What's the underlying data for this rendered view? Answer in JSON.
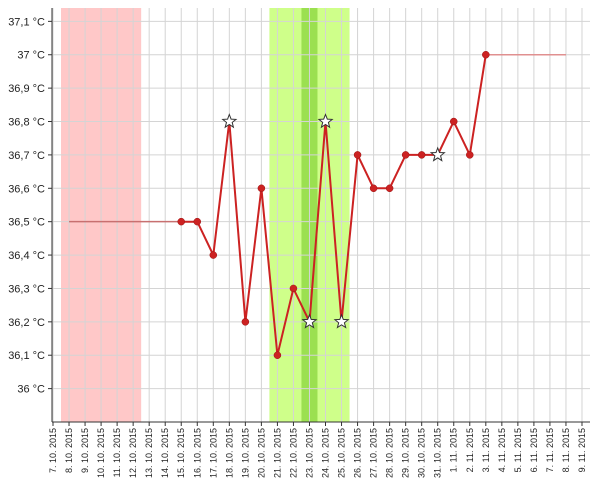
{
  "chart_data": {
    "type": "line",
    "title": "",
    "xlabel": "",
    "ylabel": "",
    "x_ticks": [
      "7. 10. 2015",
      "8. 10. 2015",
      "9. 10. 2015",
      "10. 10. 2015",
      "11. 10. 2015",
      "12. 10. 2015",
      "13. 10. 2015",
      "14. 10. 2015",
      "15. 10. 2015",
      "16. 10. 2015",
      "17. 10. 2015",
      "18. 10. 2015",
      "19. 10. 2015",
      "20. 10. 2015",
      "21. 10. 2015",
      "22. 10. 2015",
      "23. 10. 2015",
      "24. 10. 2015",
      "25. 10. 2015",
      "26. 10. 2015",
      "27. 10. 2015",
      "28. 10. 2015",
      "29. 10. 2015",
      "30. 10. 2015",
      "31. 10. 2015",
      "1. 11. 2015",
      "2. 11. 2015",
      "3. 11. 2015",
      "4. 11. 2015",
      "5. 11. 2015",
      "6. 11. 2015",
      "7. 11. 2015",
      "8. 11. 2015",
      "9. 11. 2015"
    ],
    "y_ticks": [
      {
        "value": 36.0,
        "label": "36 °C"
      },
      {
        "value": 36.1,
        "label": "36,1 °C"
      },
      {
        "value": 36.2,
        "label": "36,2 °C"
      },
      {
        "value": 36.3,
        "label": "36,3 °C"
      },
      {
        "value": 36.4,
        "label": "36,4 °C"
      },
      {
        "value": 36.5,
        "label": "36,5 °C"
      },
      {
        "value": 36.6,
        "label": "36,6 °C"
      },
      {
        "value": 36.7,
        "label": "36,7 °C"
      },
      {
        "value": 36.8,
        "label": "36,8 °C"
      },
      {
        "value": 36.9,
        "label": "36,9 °C"
      },
      {
        "value": 37.0,
        "label": "37 °C"
      },
      {
        "value": 37.1,
        "label": "37,1 °C"
      }
    ],
    "ylim": [
      35.9,
      37.14
    ],
    "xlim": [
      0,
      33.5
    ],
    "grid": true,
    "bands": [
      {
        "x0": 0.5,
        "x1": 5.5,
        "color": "#ffc8c8"
      },
      {
        "x0": 13.5,
        "x1": 18.5,
        "color": "#cfff8a"
      },
      {
        "x0": 15.5,
        "x1": 16.5,
        "color": "#9be050"
      }
    ],
    "baseline_segments": [
      {
        "x0": 1,
        "x1": 8,
        "y": 36.5,
        "color": "#c87070"
      },
      {
        "x0": 27,
        "x1": 32,
        "y": 37.0,
        "color": "#e09090"
      }
    ],
    "series": [
      {
        "color": "#cc2222",
        "points": [
          {
            "x": 8,
            "y": 36.5,
            "marker": "dot"
          },
          {
            "x": 9,
            "y": 36.5,
            "marker": "dot"
          },
          {
            "x": 10,
            "y": 36.4,
            "marker": "dot"
          },
          {
            "x": 11,
            "y": 36.8,
            "marker": "star"
          },
          {
            "x": 12,
            "y": 36.2,
            "marker": "dot"
          },
          {
            "x": 13,
            "y": 36.6,
            "marker": "dot"
          },
          {
            "x": 14,
            "y": 36.1,
            "marker": "dot"
          },
          {
            "x": 15,
            "y": 36.3,
            "marker": "dot"
          },
          {
            "x": 16,
            "y": 36.2,
            "marker": "star"
          },
          {
            "x": 17,
            "y": 36.8,
            "marker": "star"
          },
          {
            "x": 18,
            "y": 36.2,
            "marker": "star"
          },
          {
            "x": 19,
            "y": 36.7,
            "marker": "dot"
          },
          {
            "x": 20,
            "y": 36.6,
            "marker": "dot"
          },
          {
            "x": 21,
            "y": 36.6,
            "marker": "dot"
          },
          {
            "x": 22,
            "y": 36.7,
            "marker": "dot"
          },
          {
            "x": 23,
            "y": 36.7,
            "marker": "dot"
          },
          {
            "x": 24,
            "y": 36.7,
            "marker": "star"
          },
          {
            "x": 25,
            "y": 36.8,
            "marker": "dot"
          },
          {
            "x": 26,
            "y": 36.7,
            "marker": "dot"
          },
          {
            "x": 27,
            "y": 37.0,
            "marker": "dot"
          }
        ]
      }
    ]
  }
}
